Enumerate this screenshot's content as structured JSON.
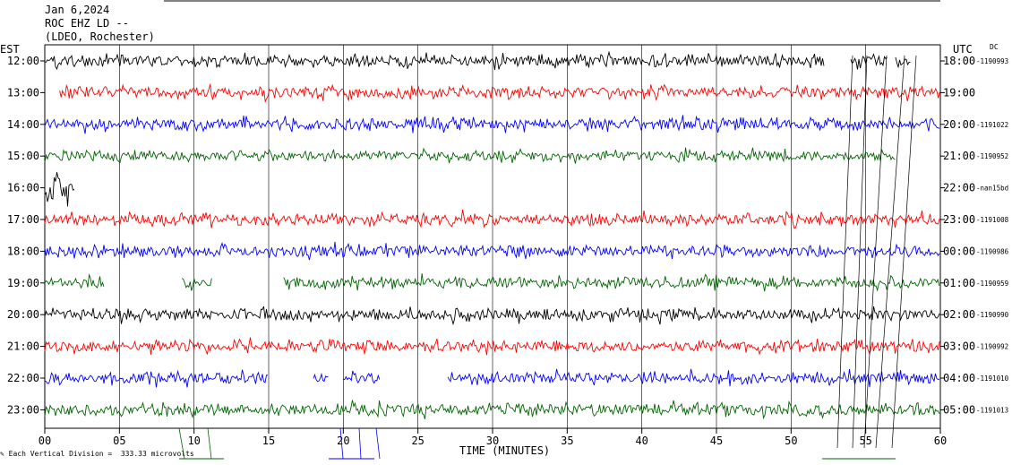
{
  "header": {
    "date": "Jan 6,2024",
    "station": "ROC EHZ LD --",
    "network": "(LDEO, Rochester)"
  },
  "axes": {
    "left_tz": "EST",
    "right_tz": "UTC",
    "dc_label": "DC",
    "xlabel": "TIME (MINUTES)",
    "scale_note": "Each Vertical Division =  333.33 microvolts"
  },
  "chart_data": {
    "type": "line",
    "title": "",
    "xlabel": "TIME (MINUTES)",
    "x_ticks": [
      "00",
      "05",
      "10",
      "15",
      "20",
      "25",
      "30",
      "35",
      "40",
      "45",
      "50",
      "55",
      "60"
    ],
    "xlim": [
      0,
      60
    ],
    "grid": "vertical-every-5-minutes",
    "trace_colors": [
      "#000000",
      "#ff0000",
      "#0000ff",
      "#006400"
    ],
    "rows": [
      {
        "est": "12:00",
        "utc": "18:00",
        "dc": "-1190993",
        "color": "#000000",
        "segments": [
          [
            0,
            52.2
          ],
          [
            54,
            56.5
          ],
          [
            57,
            58
          ]
        ],
        "amp": 1.0
      },
      {
        "est": "13:00",
        "utc": "19:00",
        "dc": "",
        "color": "#ff0000",
        "segments": [
          [
            1,
            60
          ]
        ],
        "amp": 1.0
      },
      {
        "est": "14:00",
        "utc": "20:00",
        "dc": "-1191022",
        "color": "#0000ff",
        "segments": [
          [
            0,
            60
          ]
        ],
        "amp": 1.0
      },
      {
        "est": "15:00",
        "utc": "21:00",
        "dc": "-1190952",
        "color": "#006400",
        "segments": [
          [
            0,
            57
          ]
        ],
        "amp": 0.9
      },
      {
        "est": "16:00",
        "utc": "22:00",
        "dc": "-nan15bd",
        "color": "#000000",
        "segments": [
          [
            0,
            2
          ]
        ],
        "amp": 2.6
      },
      {
        "est": "17:00",
        "utc": "23:00",
        "dc": "-1191008",
        "color": "#ff0000",
        "segments": [
          [
            0,
            60
          ]
        ],
        "amp": 1.0
      },
      {
        "est": "18:00",
        "utc": "00:00",
        "dc": "-1190986",
        "color": "#0000ff",
        "segments": [
          [
            0,
            60
          ]
        ],
        "amp": 1.0
      },
      {
        "est": "19:00",
        "utc": "01:00",
        "dc": "-1190959",
        "color": "#006400",
        "segments": [
          [
            0,
            4
          ],
          [
            9.2,
            11.2
          ],
          [
            16,
            60
          ]
        ],
        "amp": 1.0
      },
      {
        "est": "20:00",
        "utc": "02:00",
        "dc": "-1190990",
        "color": "#000000",
        "segments": [
          [
            0,
            60
          ]
        ],
        "amp": 1.0
      },
      {
        "est": "21:00",
        "utc": "03:00",
        "dc": "-1190992",
        "color": "#ff0000",
        "segments": [
          [
            0,
            60
          ]
        ],
        "amp": 1.0
      },
      {
        "est": "22:00",
        "utc": "04:00",
        "dc": "-1191010",
        "color": "#0000ff",
        "segments": [
          [
            0,
            15
          ],
          [
            18,
            19
          ],
          [
            20,
            22.5
          ],
          [
            27,
            60
          ]
        ],
        "amp": 1.0
      },
      {
        "est": "23:00",
        "utc": "05:00",
        "dc": "-1191013",
        "color": "#006400",
        "segments": [
          [
            0,
            60
          ]
        ],
        "amp": 1.0
      }
    ]
  }
}
